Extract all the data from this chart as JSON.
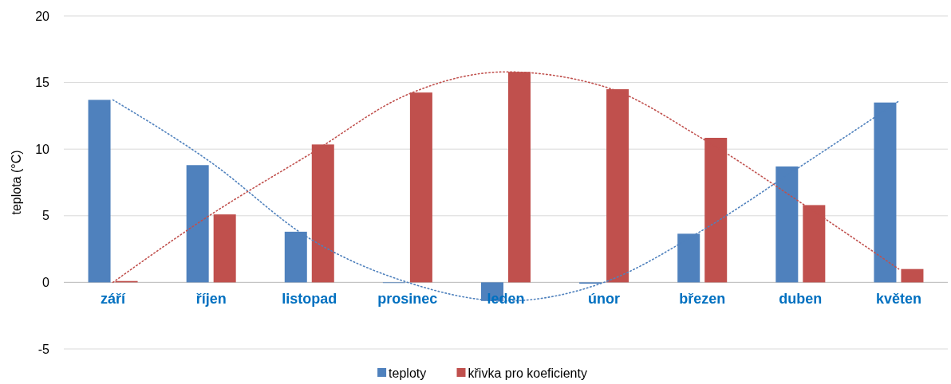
{
  "chart_data": {
    "type": "bar",
    "ylabel": "teplota (°C)",
    "categories": [
      "září",
      "říjen",
      "listopad",
      "prosinec",
      "leden",
      "únor",
      "březen",
      "duben",
      "květen"
    ],
    "series": [
      {
        "name": "teploty",
        "color": "#4f81bd",
        "values": [
          13.7,
          8.8,
          3.8,
          -0.05,
          -1.4,
          -0.1,
          3.65,
          8.7,
          13.5
        ]
      },
      {
        "name": "křivka pro koeficienty",
        "color": "#c0504d",
        "values": [
          0.1,
          5.1,
          10.35,
          14.25,
          15.8,
          14.5,
          10.85,
          5.8,
          1.0
        ]
      },
      {
        "type": "line",
        "line_style": "dotted",
        "color": "#4f81bd",
        "values": [
          13.7,
          9.0,
          3.3,
          0,
          -1.4,
          0,
          3.9,
          8.7,
          13.6
        ]
      },
      {
        "type": "line",
        "line_style": "dotted",
        "color": "#c0504d",
        "values": [
          0,
          5.1,
          9.6,
          14.1,
          15.8,
          14.7,
          10.8,
          6.0,
          1.0
        ]
      }
    ],
    "ylim": [
      -5,
      20
    ],
    "yticks": [
      -5,
      0,
      5,
      10,
      15,
      20
    ],
    "grid": "y",
    "legend": "bottom"
  }
}
